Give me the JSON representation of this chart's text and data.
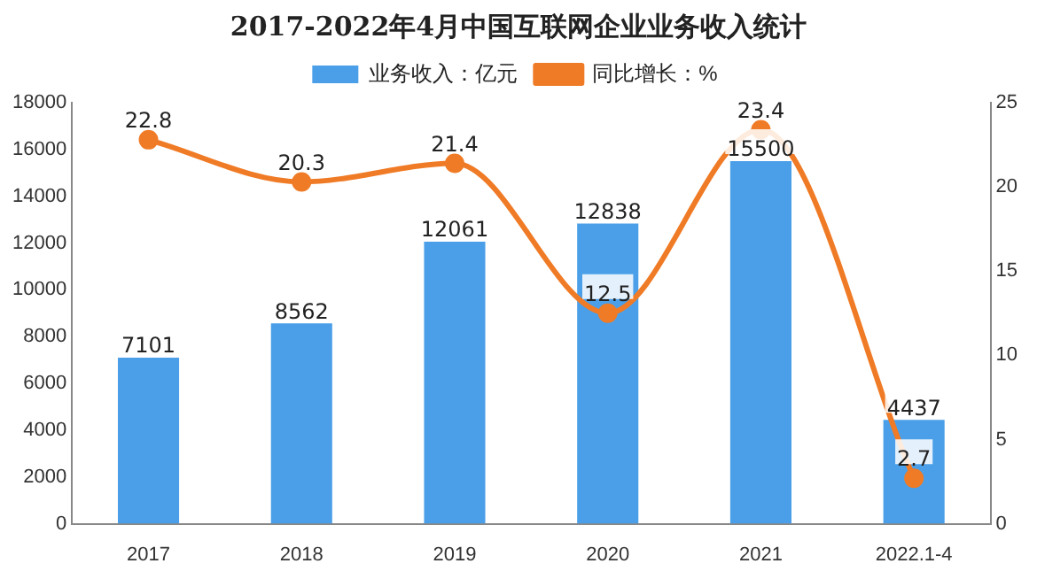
{
  "chart_data": {
    "type": "bar",
    "title": "2017-2022年4月中国互联网企业业务收入统计",
    "categories": [
      "2017",
      "2018",
      "2019",
      "2020",
      "2021",
      "2022.1-4"
    ],
    "series": [
      {
        "name": "业务收入：亿元",
        "color": "#4a9fe8",
        "values": [
          7101,
          8562,
          12061,
          12838,
          15500,
          4437
        ]
      },
      {
        "name": "同比增长：%",
        "type": "line",
        "axis": "y2",
        "color": "#f07b26",
        "values": [
          22.8,
          20.3,
          21.4,
          12.5,
          23.4,
          2.7
        ]
      }
    ],
    "ylim": [
      0,
      18000
    ],
    "yticks": [
      0,
      2000,
      4000,
      6000,
      8000,
      10000,
      12000,
      14000,
      16000,
      18000
    ],
    "y2lim": [
      0,
      25
    ],
    "y2ticks": [
      0,
      5,
      10,
      15,
      20,
      25
    ],
    "grid": false,
    "legend": "top",
    "marker": "circle",
    "line_style": "solid",
    "data_labels": true
  }
}
